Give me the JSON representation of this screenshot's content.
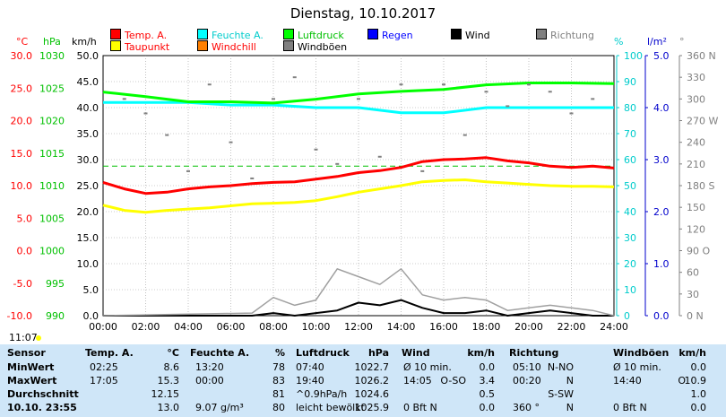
{
  "title": "Dienstag, 10.10.2017",
  "time_label": "11:07",
  "axis_units": {
    "temp": "°C",
    "hpa": "hPa",
    "wind": "km/h",
    "humidity": "%",
    "rain": "l/m²",
    "dir": "°"
  },
  "legend": [
    {
      "label": "Temp. A.",
      "color": "#ff0000",
      "text_color": "#ff0000"
    },
    {
      "label": "Feuchte A.",
      "color": "#00ffff",
      "text_color": "#00cccc"
    },
    {
      "label": "Luftdruck",
      "color": "#00ff00",
      "text_color": "#00c000"
    },
    {
      "label": "Regen",
      "color": "#0000ff",
      "text_color": "#0000ff"
    },
    {
      "label": "Wind",
      "color": "#000000",
      "text_color": "#000000"
    },
    {
      "label": "Richtung",
      "color": "#808080",
      "text_color": "#808080"
    },
    {
      "label": "Taupunkt",
      "color": "#ffff00",
      "text_color": "#ff0000"
    },
    {
      "label": "Windchill",
      "color": "#ff8000",
      "text_color": "#ff0000"
    },
    {
      "label": "Windböen",
      "color": "#808080",
      "text_color": "#000000"
    }
  ],
  "colors": {
    "temp": "#ff0000",
    "humidity": "#00cccc",
    "pressure": "#00c000",
    "rain": "#0000ff",
    "wind": "#000000",
    "direction": "#808080",
    "grid": "#999999",
    "table_bg": "#cfe6f8"
  },
  "chart_data": {
    "type": "line",
    "x_ticks": [
      "00:00",
      "02:00",
      "04:00",
      "06:00",
      "08:00",
      "10:00",
      "12:00",
      "14:00",
      "16:00",
      "18:00",
      "20:00",
      "22:00",
      "24:00"
    ],
    "axes": {
      "temp_c": {
        "ticks": [
          "30.0",
          "25.0",
          "20.0",
          "15.0",
          "10.0",
          "5.0",
          "0.0",
          "-5.0",
          "-10.0"
        ],
        "range": [
          -10,
          30
        ]
      },
      "pressure_hpa": {
        "ticks": [
          "1030",
          "1025",
          "1020",
          "1015",
          "1010",
          "1005",
          "1000",
          "995",
          "990"
        ],
        "range": [
          990,
          1030
        ]
      },
      "wind_kmh": {
        "ticks": [
          "50.0",
          "45.0",
          "40.0",
          "35.0",
          "30.0",
          "25.0",
          "20.0",
          "15.0",
          "10.0",
          "5.0",
          "0.0"
        ],
        "range": [
          0,
          50
        ]
      },
      "humidity_pct": {
        "ticks": [
          "100",
          "90",
          "80",
          "70",
          "60",
          "50",
          "40",
          "30",
          "20",
          "10",
          "0"
        ],
        "range": [
          0,
          100
        ]
      },
      "rain_lm2": {
        "ticks": [
          "5.0",
          "4.0",
          "3.0",
          "2.0",
          "1.0",
          "0.0"
        ],
        "range": [
          0,
          5
        ]
      },
      "direction_deg": {
        "ticks": [
          "360 N",
          "330",
          "300",
          "270 W",
          "240",
          "210",
          "180 S",
          "150",
          "120",
          "90 O",
          "60",
          "30",
          "0 N"
        ],
        "range": [
          0,
          360
        ]
      }
    },
    "series": [
      {
        "name": "Temp. A.",
        "axis": "temp_c",
        "x": [
          0,
          1,
          2,
          3,
          4,
          5,
          6,
          7,
          8,
          9,
          10,
          11,
          12,
          13,
          14,
          15,
          16,
          17,
          18,
          19,
          20,
          21,
          22,
          23,
          24
        ],
        "y": [
          10.5,
          9.5,
          8.8,
          9.0,
          9.5,
          9.8,
          10.0,
          10.3,
          10.5,
          10.6,
          11.0,
          11.4,
          12.0,
          12.3,
          12.8,
          13.7,
          14.0,
          14.1,
          14.3,
          13.8,
          13.5,
          13.0,
          12.8,
          13.0,
          12.7
        ]
      },
      {
        "name": "Taupunkt",
        "axis": "temp_c",
        "x": [
          0,
          1,
          2,
          3,
          4,
          5,
          6,
          7,
          8,
          9,
          10,
          11,
          12,
          13,
          14,
          15,
          16,
          17,
          18,
          19,
          20,
          21,
          22,
          23,
          24
        ],
        "y": [
          7.0,
          6.2,
          5.9,
          6.2,
          6.4,
          6.6,
          6.9,
          7.2,
          7.3,
          7.4,
          7.7,
          8.3,
          9.0,
          9.5,
          10.0,
          10.6,
          10.8,
          10.9,
          10.6,
          10.4,
          10.2,
          10.0,
          9.9,
          9.9,
          9.8
        ]
      },
      {
        "name": "Feuchte A.",
        "axis": "humidity_pct",
        "x": [
          0,
          2,
          4,
          6,
          8,
          10,
          12,
          14,
          16,
          18,
          20,
          22,
          24
        ],
        "y": [
          82,
          82,
          82,
          81,
          81,
          80,
          80,
          78,
          78,
          80,
          80,
          80,
          80
        ]
      },
      {
        "name": "Luftdruck",
        "axis": "pressure_hpa",
        "x": [
          0,
          2,
          4,
          6,
          8,
          10,
          12,
          14,
          16,
          18,
          20,
          22,
          24
        ],
        "y": [
          1024.4,
          1023.7,
          1022.9,
          1022.9,
          1022.7,
          1023.3,
          1024.1,
          1024.5,
          1024.8,
          1025.5,
          1025.8,
          1025.8,
          1025.7
        ]
      },
      {
        "name": "Wind",
        "axis": "wind_kmh",
        "x": [
          0,
          7,
          8,
          9,
          10,
          11,
          12,
          13,
          14,
          15,
          16,
          17,
          18,
          19,
          20,
          21,
          22,
          23,
          24
        ],
        "y": [
          0,
          0,
          0.5,
          0,
          0.5,
          1.0,
          2.5,
          2.0,
          3.0,
          1.5,
          0.5,
          0.5,
          1.0,
          0,
          0.5,
          1.0,
          0.5,
          0,
          0
        ]
      },
      {
        "name": "Windböen",
        "axis": "wind_kmh",
        "x": [
          0,
          7,
          8,
          9,
          10,
          11,
          12,
          13,
          14,
          15,
          16,
          17,
          18,
          19,
          20,
          21,
          22,
          23,
          24
        ],
        "y": [
          0,
          0.5,
          3.5,
          2.0,
          3.0,
          9.0,
          7.5,
          6.0,
          9.0,
          4.0,
          3.0,
          3.5,
          3.0,
          1.0,
          1.5,
          2.0,
          1.5,
          1.0,
          0
        ]
      },
      {
        "name": "Richtung",
        "axis": "direction_deg",
        "x": [
          1,
          2,
          3,
          4,
          5,
          6,
          7,
          8,
          9,
          10,
          11,
          12,
          13,
          14,
          15,
          16,
          17,
          18,
          19,
          20,
          21,
          22,
          23
        ],
        "y": [
          300,
          280,
          250,
          200,
          320,
          240,
          190,
          300,
          330,
          230,
          210,
          300,
          220,
          320,
          200,
          320,
          250,
          310,
          290,
          320,
          310,
          280,
          300
        ]
      }
    ],
    "reference_line": {
      "axis": "humidity_pct",
      "value": 57.5,
      "color": "#00c000"
    }
  },
  "table": {
    "headers": [
      "Sensor",
      "Temp. A.",
      "°C",
      "Feuchte A.",
      "%",
      "Luftdruck",
      "hPa",
      "Wind",
      "km/h",
      "Richtung",
      "",
      "Windböen",
      "km/h"
    ],
    "rows": [
      {
        "label": "MinWert",
        "temp_time": "02:25",
        "temp": "8.6",
        "hum_time": "13:20",
        "hum": "78",
        "press_time": "07:40",
        "press": "1022.7",
        "wind_note": "Ø 10 min.",
        "wind": "0.0",
        "dir_time": "05:10",
        "dir": "N-NO",
        "gust_note": "Ø 10 min.",
        "gust": "0.0"
      },
      {
        "label": "MaxWert",
        "temp_time": "17:05",
        "temp": "15.3",
        "hum_time": "00:00",
        "hum": "83",
        "press_time": "19:40",
        "press": "1026.2",
        "wind_note": "14:05",
        "wind_dir": "O-SO",
        "wind": "3.4",
        "dir_time": "00:20",
        "dir": "N",
        "gust_note": "14:40",
        "gust_dir": "O",
        "gust": "10.9"
      },
      {
        "label": "Durchschnitt",
        "temp_time": "",
        "temp": "12.15",
        "hum_time": "",
        "hum": "81",
        "press_time": "^0.9hPa/h",
        "press": "1024.6",
        "wind_note": "",
        "wind": "0.5",
        "dir_time": "",
        "dir": "S-SW",
        "gust_note": "",
        "gust": "1.0"
      },
      {
        "label": "10.10. 23:55",
        "temp_time": "",
        "temp": "13.0",
        "hum_time": "9.07 g/m³",
        "hum": "80",
        "press_time": "leicht bewölkt",
        "press": "1025.9",
        "wind_note": "0 Bft N",
        "wind": "0.0",
        "dir_time": "360 °",
        "dir": "N",
        "gust_note": "0 Bft N",
        "gust": "0.0"
      }
    ]
  }
}
